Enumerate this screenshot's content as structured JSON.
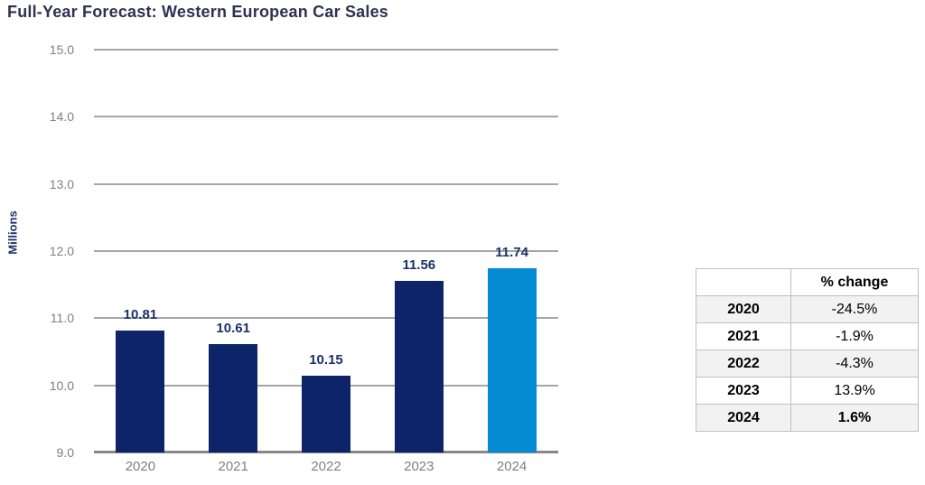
{
  "page": {
    "title": "Full-Year Forecast: Western European Car Sales"
  },
  "chart_data": {
    "type": "bar",
    "title": "Full-Year Forecast: Western European Car Sales",
    "xlabel": "",
    "ylabel": "Millions",
    "categories": [
      "2020",
      "2021",
      "2022",
      "2023",
      "2024"
    ],
    "values": [
      10.81,
      10.61,
      10.15,
      11.56,
      11.74
    ],
    "data_labels": [
      "10.81",
      "10.61",
      "10.15",
      "11.56",
      "11.74"
    ],
    "ylim": [
      9.0,
      15.0
    ],
    "yticks": [
      15.0,
      14.0,
      13.0,
      12.0,
      11.0,
      10.0,
      9.0
    ],
    "ytick_labels": [
      "15.0",
      "14.0",
      "13.0",
      "12.0",
      "11.0",
      "10.0",
      "9.0"
    ],
    "grid": true,
    "legend": "none",
    "highlight_index": 4
  },
  "table": {
    "header": [
      "",
      "% change"
    ],
    "rows": [
      {
        "year": "2020",
        "change": "-24.5%"
      },
      {
        "year": "2021",
        "change": "-1.9%"
      },
      {
        "year": "2022",
        "change": "-4.3%"
      },
      {
        "year": "2023",
        "change": "13.9%"
      },
      {
        "year": "2024",
        "change": "1.6%"
      }
    ],
    "bold_change_row_index": 4
  },
  "colors": {
    "title_text": "#2E3150",
    "data_label_text": "#1B3168",
    "axis_text": "#7F7F7F",
    "gridline": "#A6A6A6",
    "axis_line": "#878787",
    "bar_default": "#0E2468",
    "bar_highlight": "#048CD3",
    "table_border": "#BFBFBF",
    "table_shade": "#F2F2F2"
  }
}
